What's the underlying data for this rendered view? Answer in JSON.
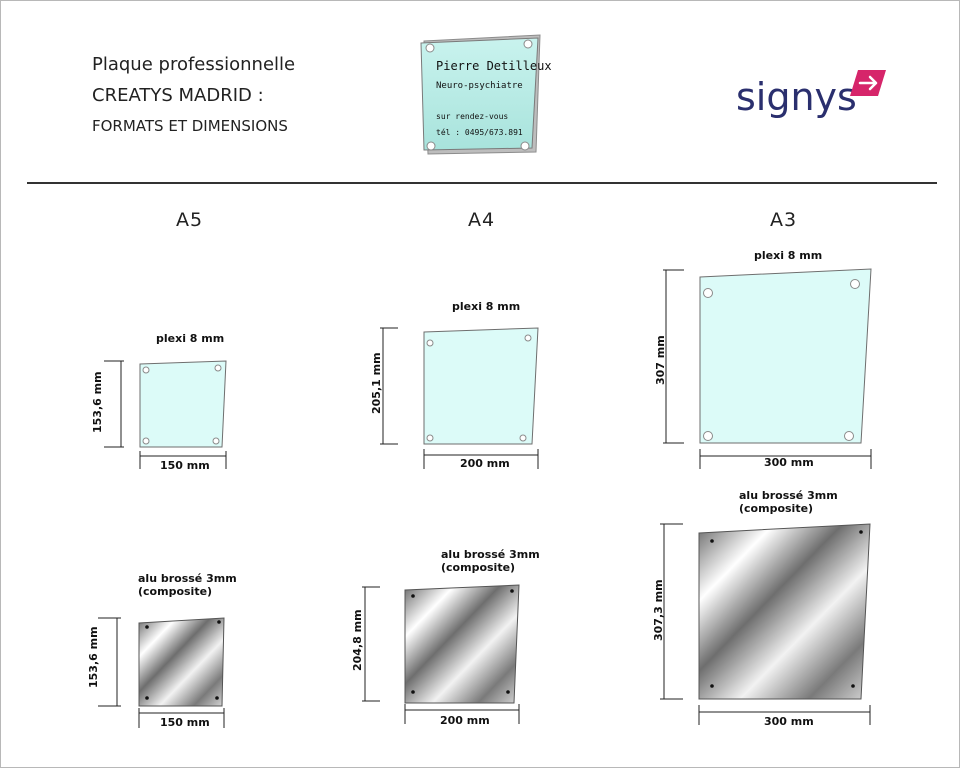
{
  "header": {
    "title_line1": "Plaque professionnelle",
    "title_line2": "CREATYS MADRID :",
    "subtitle": "FORMATS ET DIMENSIONS"
  },
  "sample_plaque": {
    "name": "Pierre Detilleux",
    "profession": "Neuro-psychiatre",
    "line3": "sur rendez-vous",
    "line4": "tél : 0495/673.891"
  },
  "logo": {
    "text": "signys",
    "colors": {
      "text": "#2a2f6e",
      "accent": "#d6256a"
    }
  },
  "formats": [
    {
      "name": "A5",
      "plexi": {
        "label": "plexi 8 mm",
        "width": "150 mm",
        "height": "153,6 mm"
      },
      "alu": {
        "label_line1": "alu brossé 3mm",
        "label_line2": "(composite)",
        "width": "150 mm",
        "height": "153,6 mm"
      }
    },
    {
      "name": "A4",
      "plexi": {
        "label": "plexi 8 mm",
        "width": "200 mm",
        "height": "205,1 mm"
      },
      "alu": {
        "label_line1": "alu brossé 3mm",
        "label_line2": "(composite)",
        "width": "200 mm",
        "height": "204,8 mm"
      }
    },
    {
      "name": "A3",
      "plexi": {
        "label": "plexi 8 mm",
        "width": "300 mm",
        "height": "307 mm"
      },
      "alu": {
        "label_line1": "alu brossé 3mm",
        "label_line2": "(composite)",
        "width": "300 mm",
        "height": "307,3 mm"
      }
    }
  ],
  "colors": {
    "plexi_fill": "#dcfbf8",
    "plexi_stroke": "#6e6e6e",
    "alu_light": "#f4f4f4",
    "alu_dark": "#5a5a5a",
    "divider": "#333333"
  }
}
